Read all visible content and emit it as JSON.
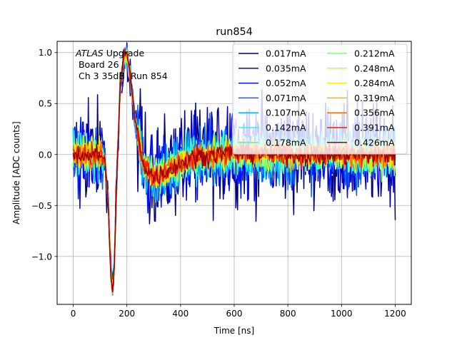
{
  "chart_data": {
    "type": "line",
    "title": "run854",
    "xlabel": "Time [ns]",
    "ylabel": "Amplitude [ADC counts]",
    "xlim": [
      -60,
      1260
    ],
    "ylim": [
      -1.47,
      1.11
    ],
    "xticks": [
      0,
      200,
      400,
      600,
      800,
      1000,
      1200
    ],
    "xtick_labels": [
      "0",
      "200",
      "400",
      "600",
      "800",
      "1000",
      "1200"
    ],
    "yticks": [
      -1.0,
      -0.5,
      0.0,
      0.5,
      1.0
    ],
    "ytick_labels": [
      "−1.0",
      "−0.5",
      "0.0",
      "0.5",
      "1.0"
    ],
    "grid": true,
    "legend_position": "top-right",
    "legend_columns": 2,
    "annotation": {
      "italic": "ATLAS",
      "rest": " Upgrade",
      "line2": " Board 26",
      "line3": " Ch 3 35dB  Run 854"
    },
    "pulse_shape": {
      "x": [
        0,
        100,
        118,
        130,
        140,
        146,
        152,
        162,
        175,
        190,
        200,
        212,
        230,
        260,
        300,
        340,
        400,
        450,
        520,
        600,
        700,
        800,
        1000,
        1200
      ],
      "y": [
        0.0,
        0.0,
        -0.05,
        -0.45,
        -1.15,
        -1.34,
        -1.2,
        -0.25,
        0.65,
        0.98,
        0.97,
        0.78,
        0.35,
        -0.08,
        -0.22,
        -0.17,
        -0.08,
        -0.03,
        0.0,
        0.02,
        0.01,
        0.0,
        0.0,
        0.0
      ]
    },
    "series": [
      {
        "name": "0.017mA",
        "color": "#00007f",
        "noise": 0.26
      },
      {
        "name": "0.035mA",
        "color": "#0000d9",
        "noise": 0.22
      },
      {
        "name": "0.052mA",
        "color": "#0014ff",
        "noise": 0.19
      },
      {
        "name": "0.071mA",
        "color": "#0064ff",
        "noise": 0.16
      },
      {
        "name": "0.107mA",
        "color": "#00b4ff",
        "noise": 0.13
      },
      {
        "name": "0.142mA",
        "color": "#26ffd0",
        "noise": 0.11
      },
      {
        "name": "0.178mA",
        "color": "#3dffb9",
        "noise": 0.1
      },
      {
        "name": "0.212mA",
        "color": "#7cff7a",
        "noise": 0.09
      },
      {
        "name": "0.248mA",
        "color": "#b9ff3d",
        "noise": 0.08
      },
      {
        "name": "0.284mA",
        "color": "#ffea00",
        "noise": 0.07
      },
      {
        "name": "0.319mA",
        "color": "#ffb000",
        "noise": 0.065
      },
      {
        "name": "0.356mA",
        "color": "#ff6800",
        "noise": 0.06
      },
      {
        "name": "0.391mA",
        "color": "#f22000",
        "noise": 0.055
      },
      {
        "name": "0.426mA",
        "color": "#9f0000",
        "noise": 0.05
      }
    ]
  }
}
